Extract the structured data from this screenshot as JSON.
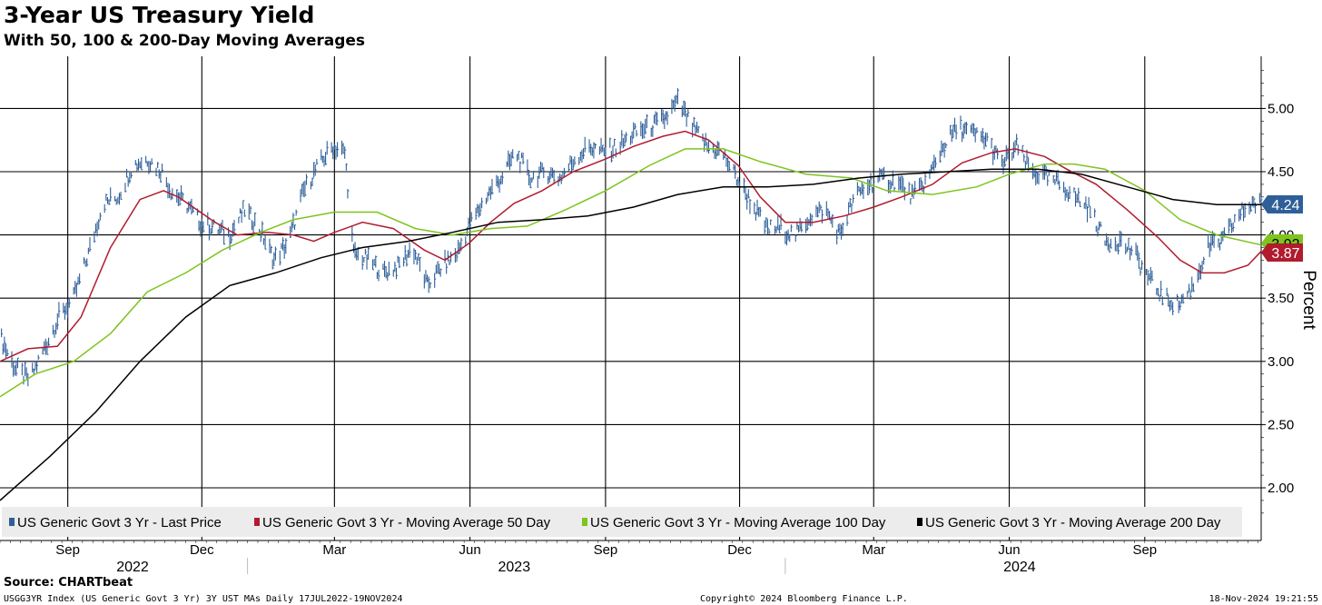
{
  "title": "3-Year US Treasury Yield",
  "subtitle": "With 50, 100 & 200-Day Moving Averages",
  "source": "Source: CHARTbeat",
  "footer": {
    "left": "USGG3YR Index (US Generic Govt 3 Yr) 3Y UST MAs  Daily 17JUL2022-19NOV2024",
    "center": "Copyright© 2024 Bloomberg Finance L.P.",
    "right": "18-Nov-2024 19:21:55"
  },
  "colors": {
    "price": "#2e5f99",
    "ma50": "#b01c2e",
    "ma100": "#7dc41e",
    "ma200": "#000000",
    "grid": "#000000"
  },
  "chart_data": {
    "type": "line",
    "title": "3-Year US Treasury Yield",
    "subtitle": "With 50, 100 & 200-Day Moving Averages",
    "ylabel": "Percent",
    "ylim": [
      1.6,
      5.5
    ],
    "yticks": [
      "2.00",
      "2.50",
      "3.00",
      "3.50",
      "4.00",
      "4.50",
      "5.00"
    ],
    "xlim": [
      "2022-07-17",
      "2024-11-19"
    ],
    "month_ticks": [
      {
        "label": "Sep",
        "date": "2022-09-01"
      },
      {
        "label": "Dec",
        "date": "2022-12-01"
      },
      {
        "label": "Mar",
        "date": "2023-03-01"
      },
      {
        "label": "Jun",
        "date": "2023-06-01"
      },
      {
        "label": "Sep",
        "date": "2023-09-01"
      },
      {
        "label": "Dec",
        "date": "2023-12-01"
      },
      {
        "label": "Mar",
        "date": "2024-03-01"
      },
      {
        "label": "Jun",
        "date": "2024-06-01"
      },
      {
        "label": "Sep",
        "date": "2024-09-01"
      }
    ],
    "year_labels": [
      {
        "label": "2022",
        "date": "2022-10-15"
      },
      {
        "label": "2023",
        "date": "2023-07-01"
      },
      {
        "label": "2024",
        "date": "2024-06-08"
      }
    ],
    "last_value_labels": [
      {
        "series": "price",
        "text": "4.24",
        "value": 4.24
      },
      {
        "series": "ma100",
        "text": "3.92",
        "value": 3.92
      },
      {
        "series": "ma50",
        "text": "3.87",
        "value": 3.87
      }
    ],
    "series": [
      {
        "key": "price",
        "name": "US Generic Govt 3 Yr - Last Price",
        "style": "hlc-bars",
        "x": [
          "2022-07-17",
          "2022-07-27",
          "2022-08-06",
          "2022-08-16",
          "2022-08-26",
          "2022-09-05",
          "2022-09-15",
          "2022-09-25",
          "2022-10-05",
          "2022-10-15",
          "2022-10-25",
          "2022-11-04",
          "2022-11-10",
          "2022-11-20",
          "2022-11-30",
          "2022-12-10",
          "2022-12-20",
          "2022-12-30",
          "2023-01-09",
          "2023-01-19",
          "2023-01-29",
          "2023-02-08",
          "2023-02-18",
          "2023-02-28",
          "2023-03-08",
          "2023-03-14",
          "2023-03-24",
          "2023-04-03",
          "2023-04-13",
          "2023-04-23",
          "2023-05-03",
          "2023-05-13",
          "2023-05-23",
          "2023-06-02",
          "2023-06-12",
          "2023-06-22",
          "2023-07-02",
          "2023-07-12",
          "2023-07-22",
          "2023-08-01",
          "2023-08-11",
          "2023-08-21",
          "2023-08-31",
          "2023-09-10",
          "2023-09-20",
          "2023-09-30",
          "2023-10-10",
          "2023-10-20",
          "2023-10-30",
          "2023-11-09",
          "2023-11-19",
          "2023-11-29",
          "2023-12-09",
          "2023-12-19",
          "2023-12-29",
          "2024-01-08",
          "2024-01-18",
          "2024-01-28",
          "2024-02-07",
          "2024-02-17",
          "2024-02-27",
          "2024-03-08",
          "2024-03-18",
          "2024-03-28",
          "2024-04-07",
          "2024-04-17",
          "2024-04-27",
          "2024-05-07",
          "2024-05-17",
          "2024-05-27",
          "2024-06-06",
          "2024-06-16",
          "2024-06-26",
          "2024-07-06",
          "2024-07-16",
          "2024-07-26",
          "2024-08-05",
          "2024-08-15",
          "2024-08-25",
          "2024-09-04",
          "2024-09-14",
          "2024-09-24",
          "2024-10-04",
          "2024-10-14",
          "2024-10-24",
          "2024-11-03",
          "2024-11-13",
          "2024-11-19"
        ],
        "values": [
          3.2,
          2.95,
          2.85,
          3.1,
          3.35,
          3.5,
          3.85,
          4.25,
          4.3,
          4.55,
          4.6,
          4.5,
          4.35,
          4.25,
          4.1,
          4.05,
          4.0,
          4.2,
          4.05,
          3.8,
          3.95,
          4.35,
          4.55,
          4.7,
          4.65,
          3.85,
          3.8,
          3.7,
          3.75,
          3.9,
          3.6,
          3.75,
          3.85,
          4.1,
          4.3,
          4.45,
          4.65,
          4.45,
          4.5,
          4.45,
          4.6,
          4.7,
          4.65,
          4.7,
          4.8,
          4.85,
          4.9,
          5.05,
          4.85,
          4.7,
          4.65,
          4.45,
          4.25,
          4.05,
          4.05,
          4.0,
          4.15,
          4.2,
          4.0,
          4.3,
          4.4,
          4.45,
          4.4,
          4.3,
          4.45,
          4.7,
          4.85,
          4.8,
          4.75,
          4.55,
          4.7,
          4.5,
          4.45,
          4.4,
          4.3,
          4.2,
          3.95,
          3.95,
          3.85,
          3.65,
          3.5,
          3.45,
          3.6,
          3.9,
          3.95,
          4.15,
          4.25,
          4.24
        ]
      },
      {
        "key": "ma50",
        "name": "US Generic Govt 3 Yr - Moving Average 50 Day",
        "style": "line",
        "x": [
          "2022-07-17",
          "2022-08-05",
          "2022-08-25",
          "2022-09-10",
          "2022-09-30",
          "2022-10-20",
          "2022-11-05",
          "2022-11-15",
          "2022-11-25",
          "2022-12-10",
          "2022-12-25",
          "2023-01-15",
          "2023-02-01",
          "2023-02-15",
          "2023-03-01",
          "2023-03-20",
          "2023-04-10",
          "2023-05-01",
          "2023-05-15",
          "2023-05-31",
          "2023-06-15",
          "2023-07-01",
          "2023-07-20",
          "2023-08-10",
          "2023-09-01",
          "2023-09-20",
          "2023-10-10",
          "2023-10-25",
          "2023-11-10",
          "2023-11-30",
          "2023-12-15",
          "2024-01-01",
          "2024-01-20",
          "2024-02-10",
          "2024-03-01",
          "2024-03-20",
          "2024-04-10",
          "2024-04-30",
          "2024-05-20",
          "2024-06-05",
          "2024-06-25",
          "2024-07-10",
          "2024-07-30",
          "2024-08-20",
          "2024-09-10",
          "2024-09-25",
          "2024-10-10",
          "2024-10-25",
          "2024-11-10",
          "2024-11-19"
        ],
        "values": [
          3.0,
          3.1,
          3.12,
          3.35,
          3.9,
          4.28,
          4.35,
          4.3,
          4.22,
          4.1,
          4.0,
          4.02,
          4.0,
          3.95,
          4.02,
          4.1,
          4.05,
          3.88,
          3.8,
          3.93,
          4.1,
          4.25,
          4.35,
          4.5,
          4.6,
          4.7,
          4.78,
          4.82,
          4.75,
          4.55,
          4.3,
          4.1,
          4.1,
          4.15,
          4.22,
          4.3,
          4.4,
          4.57,
          4.65,
          4.68,
          4.62,
          4.52,
          4.4,
          4.2,
          3.98,
          3.8,
          3.7,
          3.7,
          3.76,
          3.87
        ]
      },
      {
        "key": "ma100",
        "name": "US Generic Govt 3 Yr - Moving Average 100 Day",
        "style": "line",
        "x": [
          "2022-07-17",
          "2022-08-10",
          "2022-09-05",
          "2022-09-30",
          "2022-10-25",
          "2022-11-20",
          "2022-12-15",
          "2023-01-10",
          "2023-02-01",
          "2023-03-01",
          "2023-03-30",
          "2023-04-25",
          "2023-05-20",
          "2023-06-15",
          "2023-07-10",
          "2023-08-05",
          "2023-09-01",
          "2023-10-01",
          "2023-10-25",
          "2023-11-20",
          "2023-12-15",
          "2024-01-15",
          "2024-02-15",
          "2024-03-10",
          "2024-04-10",
          "2024-05-10",
          "2024-06-01",
          "2024-06-25",
          "2024-07-15",
          "2024-08-05",
          "2024-09-01",
          "2024-09-25",
          "2024-10-20",
          "2024-11-19"
        ],
        "values": [
          2.72,
          2.9,
          3.0,
          3.22,
          3.55,
          3.7,
          3.88,
          4.02,
          4.12,
          4.18,
          4.18,
          4.05,
          4.0,
          4.05,
          4.07,
          4.2,
          4.35,
          4.55,
          4.68,
          4.68,
          4.58,
          4.48,
          4.45,
          4.35,
          4.32,
          4.38,
          4.48,
          4.56,
          4.56,
          4.52,
          4.35,
          4.12,
          4.0,
          3.92
        ]
      },
      {
        "key": "ma200",
        "name": "US Generic Govt 3 Yr - Moving Average 200 Day",
        "style": "line",
        "x": [
          "2022-07-17",
          "2022-08-20",
          "2022-09-20",
          "2022-10-20",
          "2022-11-20",
          "2022-12-20",
          "2023-01-20",
          "2023-02-20",
          "2023-03-20",
          "2023-04-20",
          "2023-05-20",
          "2023-06-20",
          "2023-07-20",
          "2023-08-20",
          "2023-09-20",
          "2023-10-20",
          "2023-11-20",
          "2023-12-20",
          "2024-01-20",
          "2024-02-20",
          "2024-03-20",
          "2024-04-20",
          "2024-05-20",
          "2024-06-20",
          "2024-07-20",
          "2024-08-20",
          "2024-09-20",
          "2024-10-20",
          "2024-11-19"
        ],
        "values": [
          1.9,
          2.25,
          2.6,
          3.0,
          3.35,
          3.6,
          3.7,
          3.82,
          3.9,
          3.95,
          4.02,
          4.1,
          4.12,
          4.15,
          4.22,
          4.32,
          4.38,
          4.38,
          4.4,
          4.45,
          4.48,
          4.5,
          4.52,
          4.52,
          4.48,
          4.38,
          4.28,
          4.24,
          4.24
        ]
      }
    ]
  }
}
